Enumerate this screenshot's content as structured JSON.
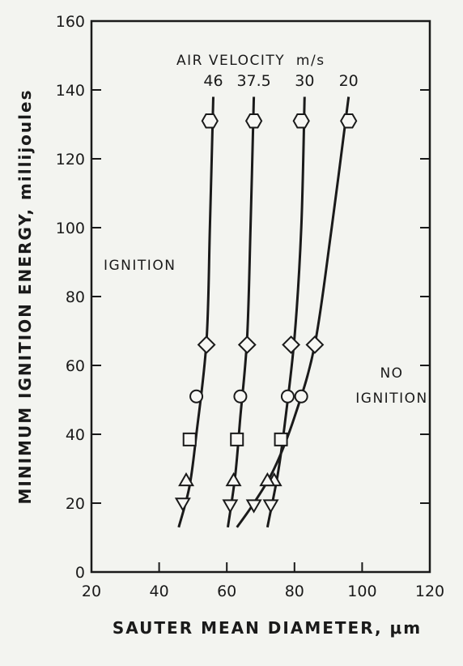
{
  "chart_data": {
    "type": "line",
    "xlabel": "SAUTER MEAN DIAMETER, μm",
    "ylabel": "MINIMUM IGNITION ENERGY, millijoules",
    "xlim": [
      20,
      120
    ],
    "ylim": [
      0,
      160
    ],
    "x_ticks": [
      "20",
      "40",
      "60",
      "80",
      "100",
      "120"
    ],
    "y_ticks": [
      "0",
      "20",
      "40",
      "60",
      "80",
      "100",
      "120",
      "140",
      "160"
    ],
    "legend_title": "AIR VELOCITY  m/s",
    "annotations": {
      "ignition": "IGNITION",
      "no_ignition_1": "NO",
      "no_ignition_2": "IGNITION"
    },
    "grid": false,
    "series": [
      {
        "name": "46",
        "curve": [
          [
            45.8,
            13
          ],
          [
            49,
            25
          ],
          [
            51,
            40
          ],
          [
            54,
            67
          ],
          [
            55,
            100
          ],
          [
            56,
            138
          ]
        ],
        "points": [
          {
            "x": 47,
            "y": 20,
            "marker": "triangle-down"
          },
          {
            "x": 48,
            "y": 26.5,
            "marker": "triangle-up"
          },
          {
            "x": 49,
            "y": 38.5,
            "marker": "square"
          },
          {
            "x": 51,
            "y": 51,
            "marker": "circle"
          },
          {
            "x": 54,
            "y": 66,
            "marker": "diamond"
          },
          {
            "x": 55,
            "y": 131,
            "marker": "hexagon"
          }
        ]
      },
      {
        "name": "37.5",
        "curve": [
          [
            60.3,
            13
          ],
          [
            62.5,
            28
          ],
          [
            64,
            45
          ],
          [
            66,
            68
          ],
          [
            67,
            100
          ],
          [
            68,
            138
          ]
        ],
        "points": [
          {
            "x": 61,
            "y": 19.5,
            "marker": "triangle-down"
          },
          {
            "x": 62,
            "y": 26.5,
            "marker": "triangle-up"
          },
          {
            "x": 63,
            "y": 38.5,
            "marker": "square"
          },
          {
            "x": 64,
            "y": 51,
            "marker": "circle"
          },
          {
            "x": 66,
            "y": 66,
            "marker": "diamond"
          },
          {
            "x": 68,
            "y": 131,
            "marker": "hexagon"
          }
        ]
      },
      {
        "name": "30",
        "curve": [
          [
            72,
            13
          ],
          [
            75,
            28
          ],
          [
            77,
            42
          ],
          [
            80,
            68
          ],
          [
            82,
            100
          ],
          [
            83,
            138
          ]
        ],
        "points": [
          {
            "x": 73,
            "y": 19.5,
            "marker": "triangle-down"
          },
          {
            "x": 74,
            "y": 26.5,
            "marker": "triangle-up"
          },
          {
            "x": 76,
            "y": 38.5,
            "marker": "square"
          },
          {
            "x": 78,
            "y": 51,
            "marker": "circle"
          },
          {
            "x": 79,
            "y": 66,
            "marker": "diamond"
          },
          {
            "x": 82,
            "y": 131,
            "marker": "hexagon"
          }
        ]
      },
      {
        "name": "20",
        "curve": [
          [
            63,
            13
          ],
          [
            68,
            20
          ],
          [
            74,
            30
          ],
          [
            80,
            45
          ],
          [
            86,
            66
          ],
          [
            91,
            100
          ],
          [
            96,
            138
          ]
        ],
        "points": [
          {
            "x": 68,
            "y": 19.5,
            "marker": "triangle-down"
          },
          {
            "x": 72,
            "y": 26.5,
            "marker": "triangle-up"
          },
          {
            "x": 82,
            "y": 51,
            "marker": "circle"
          },
          {
            "x": 86,
            "y": 66,
            "marker": "diamond"
          },
          {
            "x": 96,
            "y": 131,
            "marker": "hexagon"
          }
        ]
      }
    ]
  }
}
